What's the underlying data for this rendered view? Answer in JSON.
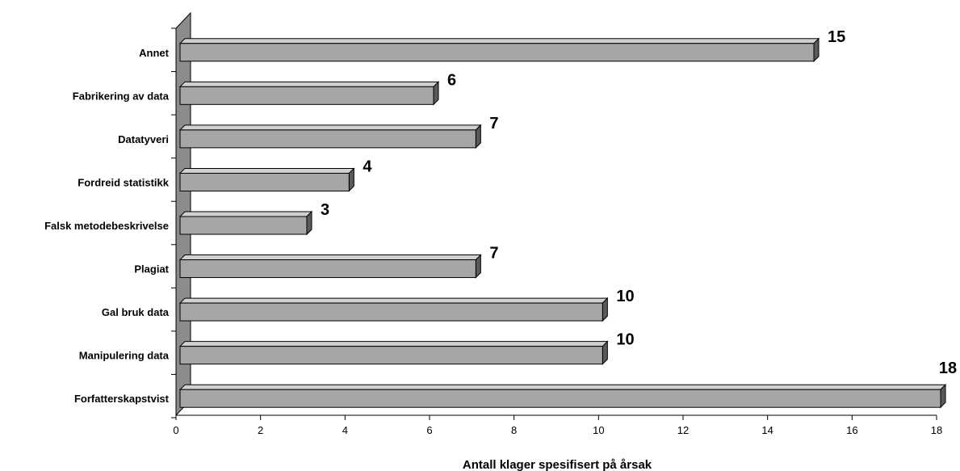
{
  "chart_data": {
    "type": "bar",
    "orientation": "horizontal",
    "categories": [
      "Forfatterskapstvist",
      "Manipulering data",
      "Gal bruk data",
      "Plagiat",
      "Falsk metodebeskrivelse",
      "Fordreid statistikk",
      "Datatyveri",
      "Fabrikering av data",
      "Annet"
    ],
    "values": [
      18,
      10,
      10,
      7,
      3,
      4,
      7,
      6,
      15
    ],
    "title": "",
    "xlabel": "Antall klager spesifisert på årsak",
    "ylabel": "",
    "xlim": [
      0,
      18
    ],
    "xticks": [
      0,
      2,
      4,
      6,
      8,
      10,
      12,
      14,
      16,
      18
    ],
    "grid": false,
    "legend": "none",
    "style": "3d",
    "colors": {
      "bar_front": "#a6a6a6",
      "bar_top": "#d0d0d0",
      "bar_side": "#5a5a5a",
      "wall": "#8c8c8c"
    }
  }
}
